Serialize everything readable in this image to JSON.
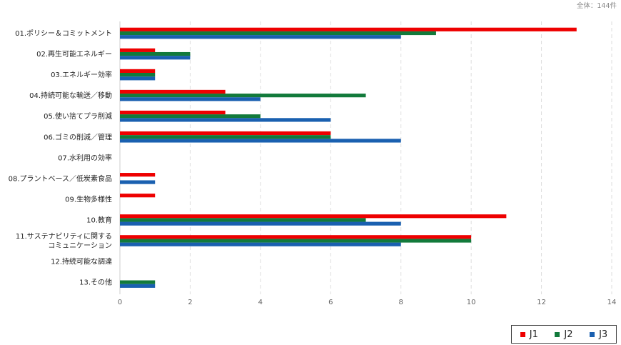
{
  "total_label": "全体：144件",
  "colors": {
    "J1": "#ee0000",
    "J2": "#127a3b",
    "J3": "#1a60b0"
  },
  "chart_data": {
    "type": "bar",
    "orientation": "horizontal",
    "categories": [
      "01.ポリシー＆コミットメント",
      "02.再生可能エネルギー",
      "03.エネルギー効率",
      "04.持続可能な輸送／移動",
      "05.使い捨てプラ削減",
      "06.ゴミの削減／管理",
      "07.水利用の効率",
      "08.プラントベース／低炭素食品",
      "09.生物多様性",
      "10.教育",
      "11.サステナビリティに関する\nコミュニケーション",
      "12.持続可能な調達",
      "13.その他"
    ],
    "series": [
      {
        "name": "J1",
        "values": [
          13,
          1,
          1,
          3,
          3,
          6,
          0,
          1,
          1,
          11,
          10,
          0,
          0
        ]
      },
      {
        "name": "J2",
        "values": [
          9,
          2,
          1,
          7,
          4,
          6,
          0,
          0,
          0,
          7,
          10,
          0,
          1
        ]
      },
      {
        "name": "J3",
        "values": [
          8,
          2,
          1,
          4,
          6,
          8,
          0,
          1,
          0,
          8,
          8,
          0,
          1
        ]
      }
    ],
    "xticks": [
      0,
      2,
      4,
      6,
      8,
      10,
      12,
      14
    ],
    "xlim": [
      0,
      14
    ],
    "grid": "vertical-dashed",
    "legend_position": "bottom-right"
  }
}
